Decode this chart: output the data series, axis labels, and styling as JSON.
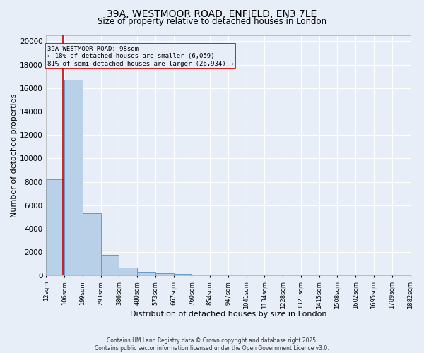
{
  "title1": "39A, WESTMOOR ROAD, ENFIELD, EN3 7LE",
  "title2": "Size of property relative to detached houses in London",
  "xlabel": "Distribution of detached houses by size in London",
  "ylabel": "Number of detached properties",
  "annotation_title": "39A WESTMOOR ROAD: 98sqm",
  "annotation_line1": "← 18% of detached houses are smaller (6,059)",
  "annotation_line2": "81% of semi-detached houses are larger (26,934) →",
  "property_size_sqm": 98,
  "bin_edges": [
    12,
    106,
    199,
    293,
    386,
    480,
    573,
    667,
    760,
    854,
    947,
    1041,
    1134,
    1228,
    1321,
    1415,
    1508,
    1602,
    1695,
    1789,
    1882
  ],
  "bin_counts": [
    8200,
    16700,
    5350,
    1800,
    680,
    350,
    220,
    150,
    100,
    70,
    55,
    40,
    30,
    25,
    20,
    18,
    15,
    12,
    10,
    8
  ],
  "bar_color": "#b8d0e8",
  "bar_edge_color": "#6699cc",
  "line_color": "#cc0000",
  "annotation_box_color": "#cc0000",
  "background_color": "#e8eef8",
  "grid_color": "#ffffff",
  "ylim": [
    0,
    20500
  ],
  "yticks": [
    0,
    2000,
    4000,
    6000,
    8000,
    10000,
    12000,
    14000,
    16000,
    18000,
    20000
  ],
  "footer1": "Contains HM Land Registry data © Crown copyright and database right 2025.",
  "footer2": "Contains public sector information licensed under the Open Government Licence v3.0."
}
